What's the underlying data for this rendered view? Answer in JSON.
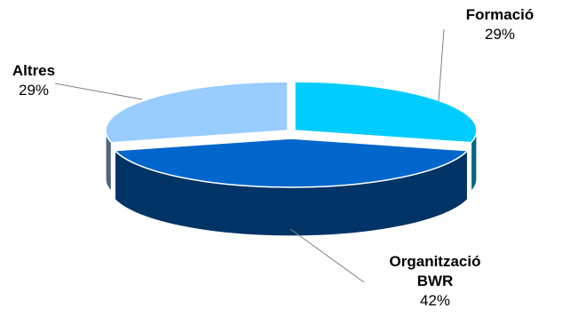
{
  "chart_data": {
    "type": "pie",
    "style": "3d-exploded",
    "title": "",
    "legend": "none",
    "series": [
      {
        "label_lines": [
          "Formació"
        ],
        "percent_label": "29%",
        "value": 29,
        "color": "#00ccff",
        "side_color": "#006680"
      },
      {
        "label_lines": [
          "Organització",
          "BWR"
        ],
        "percent_label": "42%",
        "value": 42,
        "color": "#0066cc",
        "side_color": "#003366"
      },
      {
        "label_lines": [
          "Altres"
        ],
        "percent_label": "29%",
        "value": 29,
        "color": "#99ccff",
        "side_color": "#4d6680"
      }
    ]
  }
}
